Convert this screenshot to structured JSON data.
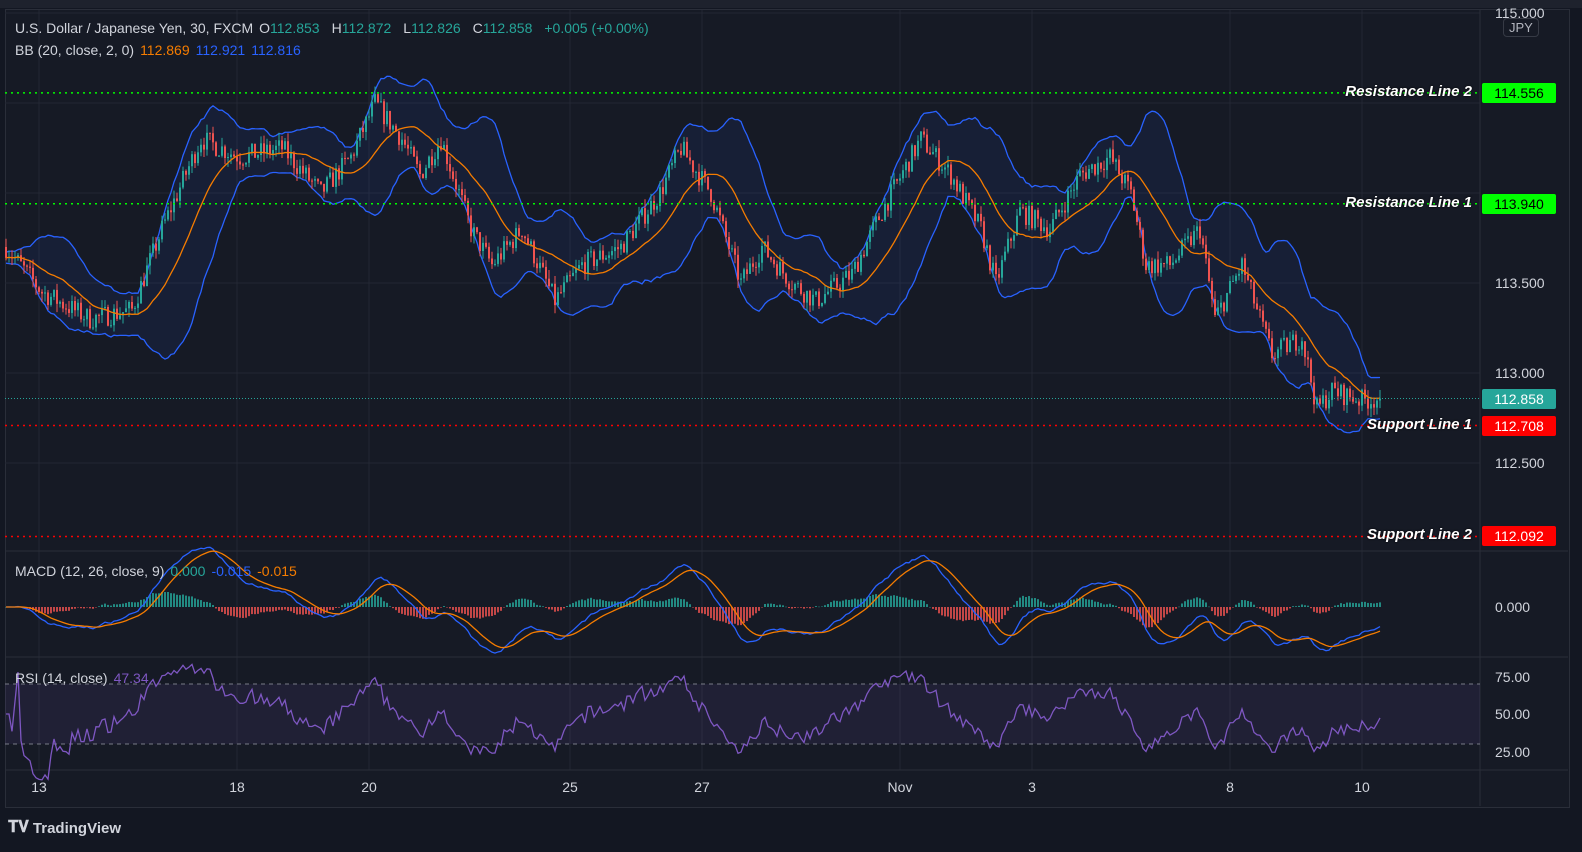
{
  "header": {
    "symbol": "U.S. Dollar / Japanese Yen, 30, FXCM",
    "o_label": "O",
    "o": "112.853",
    "h_label": "H",
    "h": "112.872",
    "l_label": "L",
    "l": "112.826",
    "c_label": "C",
    "c": "112.858",
    "change": "+0.005 (+0.00%)"
  },
  "bb_legend": {
    "label": "BB (20, close, 2, 0)",
    "basis": "112.869",
    "upper": "112.921",
    "lower": "112.816"
  },
  "macd_legend": {
    "label": "MACD (12, 26, close, 9)",
    "hist": "0.000",
    "macd": "-0.015",
    "signal": "-0.015"
  },
  "rsi_legend": {
    "label": "RSI (14, close)",
    "value": "47.34"
  },
  "currency": "JPY",
  "brand": "TradingView",
  "colors": {
    "up": "#26a69a",
    "down": "#ef5350",
    "bb_basis": "#f57c00",
    "bb_band": "#2962ff",
    "rsi": "#7e57c2",
    "resistance": "#00ff00",
    "support": "#ff0000"
  },
  "chart_data": {
    "type": "candlestick",
    "bars": 459,
    "price_path": [
      [
        0,
        113.7
      ],
      [
        12,
        113.45
      ],
      [
        28,
        113.3
      ],
      [
        42,
        113.35
      ],
      [
        52,
        113.8
      ],
      [
        65,
        114.3
      ],
      [
        78,
        114.2
      ],
      [
        92,
        114.25
      ],
      [
        105,
        114.0
      ],
      [
        115,
        114.2
      ],
      [
        123,
        114.5
      ],
      [
        132,
        114.3
      ],
      [
        138,
        114.1
      ],
      [
        145,
        114.3
      ],
      [
        155,
        113.8
      ],
      [
        162,
        113.6
      ],
      [
        172,
        113.8
      ],
      [
        183,
        113.4
      ],
      [
        192,
        113.6
      ],
      [
        205,
        113.7
      ],
      [
        218,
        114.0
      ],
      [
        225,
        114.25
      ],
      [
        235,
        114.0
      ],
      [
        245,
        113.5
      ],
      [
        252,
        113.7
      ],
      [
        262,
        113.5
      ],
      [
        270,
        113.4
      ],
      [
        282,
        113.55
      ],
      [
        292,
        113.9
      ],
      [
        305,
        114.3
      ],
      [
        315,
        114.1
      ],
      [
        325,
        113.8
      ],
      [
        330,
        113.5
      ],
      [
        338,
        113.9
      ],
      [
        348,
        113.8
      ],
      [
        358,
        114.1
      ],
      [
        368,
        114.2
      ],
      [
        375,
        114.0
      ],
      [
        380,
        113.6
      ],
      [
        388,
        113.6
      ],
      [
        398,
        113.8
      ],
      [
        403,
        113.3
      ],
      [
        412,
        113.6
      ],
      [
        422,
        113.1
      ],
      [
        432,
        113.2
      ],
      [
        437,
        112.8
      ],
      [
        442,
        112.9
      ],
      [
        452,
        112.85
      ],
      [
        458,
        112.858
      ]
    ],
    "price_axis": {
      "ylim": [
        111.9,
        115.0
      ],
      "ticks": [
        "115.000",
        "114.500",
        "114.000",
        "113.500",
        "113.000",
        "112.500"
      ]
    },
    "macd_axis": {
      "ticks": [
        "0.000"
      ]
    },
    "rsi_axis": {
      "ylim": [
        15,
        85
      ],
      "ticks": [
        "75.00",
        "50.00",
        "25.00"
      ],
      "band": [
        30,
        70
      ]
    },
    "time_ticks": [
      {
        "label": "13",
        "bar": 11
      },
      {
        "label": "18",
        "bar": 77
      },
      {
        "label": "20",
        "bar": 121
      },
      {
        "label": "25",
        "bar": 188
      },
      {
        "label": "27",
        "bar": 232
      },
      {
        "label": "Nov",
        "bar": 298
      },
      {
        "label": "3",
        "bar": 342
      },
      {
        "label": "8",
        "bar": 408
      },
      {
        "label": "10",
        "bar": 452
      }
    ],
    "levels": [
      {
        "name": "Resistance Line 2",
        "value": 114.556,
        "label": "114.556",
        "kind": "resistance"
      },
      {
        "name": "Resistance Line 1",
        "value": 113.94,
        "label": "113.940",
        "kind": "resistance"
      },
      {
        "name": "Support Line 1",
        "value": 112.708,
        "label": "112.708",
        "kind": "support"
      },
      {
        "name": "Support Line 2",
        "value": 112.092,
        "label": "112.092",
        "kind": "support"
      }
    ],
    "last_price": {
      "value": 112.858,
      "label": "112.858"
    }
  }
}
